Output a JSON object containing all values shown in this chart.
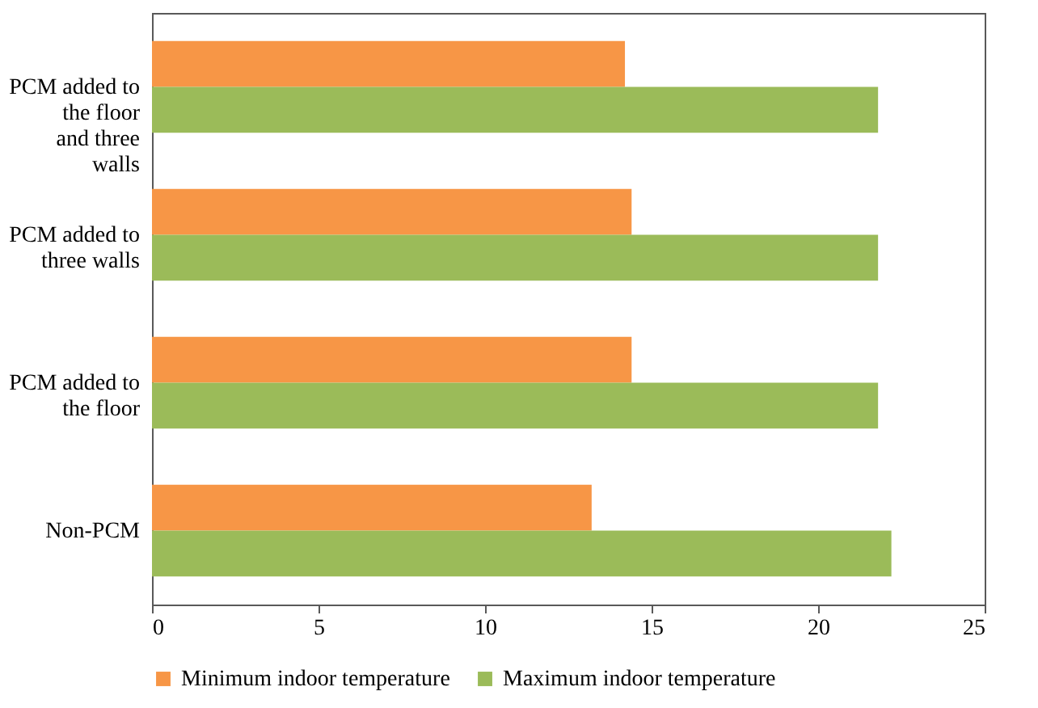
{
  "chart_data": {
    "type": "bar",
    "orientation": "horizontal",
    "categories": [
      "PCM added to the floor and three walls",
      "PCM added to three walls",
      "PCM added to the floor",
      "Non-PCM"
    ],
    "series": [
      {
        "name": "Minimum indoor temperature",
        "color": "#f79646",
        "values": [
          14.2,
          14.4,
          14.4,
          13.2
        ]
      },
      {
        "name": "Maximum indoor temperature",
        "color": "#9bbb59",
        "values": [
          21.8,
          21.8,
          21.8,
          22.2
        ]
      }
    ],
    "xlim": [
      0,
      25
    ],
    "xticks": [
      0,
      5,
      10,
      15,
      20,
      25
    ],
    "grid": false,
    "legend": "bottom"
  }
}
